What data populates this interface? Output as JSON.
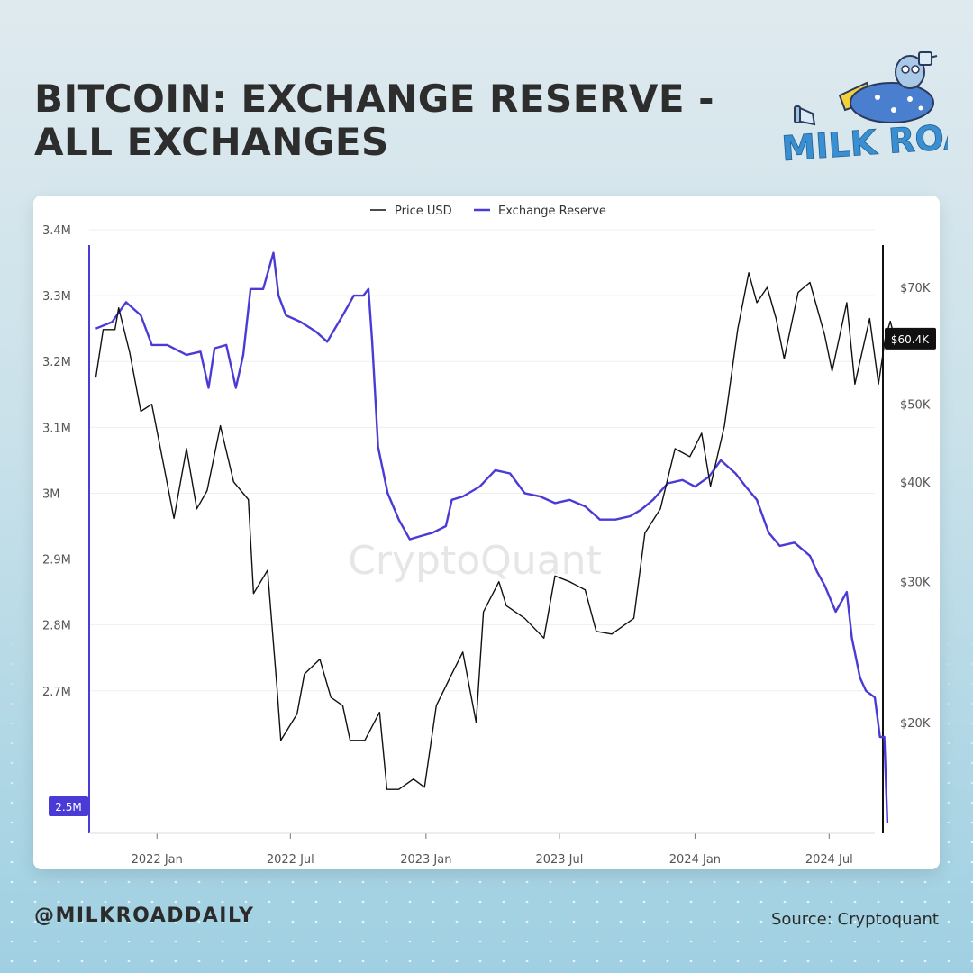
{
  "header": {
    "title": "BITCOIN: EXCHANGE RESERVE - ALL EXCHANGES"
  },
  "branding": {
    "logo_text": "MILK ROAD",
    "logo_icon": "cartoon-cow-with-telescope",
    "handle": "@MILKROADDAILY",
    "source": "Source: Cryptoquant",
    "watermark": "CryptoQuant"
  },
  "colors": {
    "reserve": "#4b3bd6",
    "price": "#111111",
    "title": "#2d2d2d",
    "logo": "#3a8fd1"
  },
  "chart_data": {
    "type": "line",
    "title": "",
    "legend": {
      "placement": "top-center",
      "entries": [
        "Price USD",
        "Exchange Reserve"
      ]
    },
    "x_range": [
      "2021-10",
      "2024-09"
    ],
    "x_ticks": [
      {
        "label": "2022 Jan",
        "t": "2022-01"
      },
      {
        "label": "2022 Jul",
        "t": "2022-07"
      },
      {
        "label": "2023 Jan",
        "t": "2023-01"
      },
      {
        "label": "2023 Jul",
        "t": "2023-07"
      },
      {
        "label": "2024 Jan",
        "t": "2024-01"
      },
      {
        "label": "2024 Jul",
        "t": "2024-07"
      }
    ],
    "y_left": {
      "range": [
        2500000,
        3400000
      ],
      "ticks": [
        {
          "v": 3400000,
          "label": "3.4M"
        },
        {
          "v": 3300000,
          "label": "3.3M"
        },
        {
          "v": 3200000,
          "label": "3.2M"
        },
        {
          "v": 3100000,
          "label": "3.1M"
        },
        {
          "v": 3000000,
          "label": "3M"
        },
        {
          "v": 2900000,
          "label": "2.9M"
        },
        {
          "v": 2800000,
          "label": "2.8M"
        },
        {
          "v": 2700000,
          "label": "2.7M"
        }
      ],
      "current_label": "2.5M"
    },
    "y_right": {
      "scale": "log",
      "ticks": [
        {
          "v": 70000,
          "label": "$70K"
        },
        {
          "v": 50000,
          "label": "$50K"
        },
        {
          "v": 40000,
          "label": "$40K"
        },
        {
          "v": 30000,
          "label": "$30K"
        },
        {
          "v": 20000,
          "label": "$20K"
        }
      ],
      "current_label": "$60.4K"
    },
    "series": [
      {
        "name": "Exchange Reserve",
        "axis": "left",
        "points": [
          [
            "2021-10-10",
            3250000
          ],
          [
            "2021-11-01",
            3260000
          ],
          [
            "2021-11-20",
            3290000
          ],
          [
            "2021-12-10",
            3270000
          ],
          [
            "2021-12-25",
            3225000
          ],
          [
            "2022-01-15",
            3225000
          ],
          [
            "2022-02-10",
            3210000
          ],
          [
            "2022-03-01",
            3215000
          ],
          [
            "2022-03-12",
            3160000
          ],
          [
            "2022-03-20",
            3220000
          ],
          [
            "2022-04-05",
            3225000
          ],
          [
            "2022-04-18",
            3160000
          ],
          [
            "2022-04-28",
            3210000
          ],
          [
            "2022-05-08",
            3310000
          ],
          [
            "2022-05-25",
            3310000
          ],
          [
            "2022-06-08",
            3365000
          ],
          [
            "2022-06-15",
            3300000
          ],
          [
            "2022-06-25",
            3270000
          ],
          [
            "2022-07-15",
            3260000
          ],
          [
            "2022-08-05",
            3245000
          ],
          [
            "2022-08-20",
            3230000
          ],
          [
            "2022-09-10",
            3270000
          ],
          [
            "2022-09-25",
            3300000
          ],
          [
            "2022-10-08",
            3300000
          ],
          [
            "2022-10-15",
            3310000
          ],
          [
            "2022-10-20",
            3230000
          ],
          [
            "2022-10-28",
            3070000
          ],
          [
            "2022-11-10",
            3000000
          ],
          [
            "2022-11-25",
            2960000
          ],
          [
            "2022-12-10",
            2930000
          ],
          [
            "2022-12-25",
            2935000
          ],
          [
            "2023-01-10",
            2940000
          ],
          [
            "2023-01-28",
            2950000
          ],
          [
            "2023-02-05",
            2990000
          ],
          [
            "2023-02-20",
            2995000
          ],
          [
            "2023-03-15",
            3010000
          ],
          [
            "2023-04-05",
            3035000
          ],
          [
            "2023-04-25",
            3030000
          ],
          [
            "2023-05-15",
            3000000
          ],
          [
            "2023-06-05",
            2995000
          ],
          [
            "2023-06-25",
            2985000
          ],
          [
            "2023-07-15",
            2990000
          ],
          [
            "2023-08-05",
            2980000
          ],
          [
            "2023-08-25",
            2960000
          ],
          [
            "2023-09-15",
            2960000
          ],
          [
            "2023-10-05",
            2965000
          ],
          [
            "2023-10-20",
            2975000
          ],
          [
            "2023-11-05",
            2990000
          ],
          [
            "2023-11-25",
            3015000
          ],
          [
            "2023-12-15",
            3020000
          ],
          [
            "2024-01-01",
            3010000
          ],
          [
            "2024-01-20",
            3025000
          ],
          [
            "2024-02-05",
            3050000
          ],
          [
            "2024-02-25",
            3030000
          ],
          [
            "2024-03-10",
            3010000
          ],
          [
            "2024-03-25",
            2990000
          ],
          [
            "2024-04-10",
            2940000
          ],
          [
            "2024-04-25",
            2920000
          ],
          [
            "2024-05-15",
            2925000
          ],
          [
            "2024-06-05",
            2905000
          ],
          [
            "2024-06-15",
            2880000
          ],
          [
            "2024-06-25",
            2860000
          ],
          [
            "2024-07-10",
            2820000
          ],
          [
            "2024-07-25",
            2850000
          ],
          [
            "2024-08-01",
            2780000
          ],
          [
            "2024-08-12",
            2720000
          ],
          [
            "2024-08-20",
            2700000
          ],
          [
            "2024-09-01",
            2690000
          ],
          [
            "2024-09-08",
            2630000
          ],
          [
            "2024-09-14",
            2630000
          ],
          [
            "2024-09-18",
            2500000
          ]
        ]
      },
      {
        "name": "Price USD",
        "axis": "right",
        "points": [
          [
            "2021-10-10",
            54000
          ],
          [
            "2021-10-20",
            62000
          ],
          [
            "2021-11-05",
            62000
          ],
          [
            "2021-11-10",
            66000
          ],
          [
            "2021-11-25",
            58000
          ],
          [
            "2021-12-10",
            49000
          ],
          [
            "2021-12-25",
            50000
          ],
          [
            "2022-01-10",
            42000
          ],
          [
            "2022-01-24",
            36000
          ],
          [
            "2022-02-10",
            44000
          ],
          [
            "2022-02-24",
            37000
          ],
          [
            "2022-03-10",
            39000
          ],
          [
            "2022-03-28",
            47000
          ],
          [
            "2022-04-15",
            40000
          ],
          [
            "2022-05-05",
            38000
          ],
          [
            "2022-05-12",
            29000
          ],
          [
            "2022-05-31",
            31000
          ],
          [
            "2022-06-13",
            22000
          ],
          [
            "2022-06-18",
            19000
          ],
          [
            "2022-07-10",
            20500
          ],
          [
            "2022-07-20",
            23000
          ],
          [
            "2022-08-10",
            24000
          ],
          [
            "2022-08-25",
            21500
          ],
          [
            "2022-09-10",
            21000
          ],
          [
            "2022-09-20",
            19000
          ],
          [
            "2022-10-10",
            19000
          ],
          [
            "2022-10-30",
            20600
          ],
          [
            "2022-11-09",
            16500
          ],
          [
            "2022-11-25",
            16500
          ],
          [
            "2022-12-15",
            17000
          ],
          [
            "2022-12-30",
            16600
          ],
          [
            "2023-01-15",
            21000
          ],
          [
            "2023-02-05",
            23000
          ],
          [
            "2023-02-20",
            24500
          ],
          [
            "2023-03-10",
            20000
          ],
          [
            "2023-03-20",
            27500
          ],
          [
            "2023-04-10",
            30000
          ],
          [
            "2023-04-20",
            28000
          ],
          [
            "2023-05-15",
            27000
          ],
          [
            "2023-06-10",
            25500
          ],
          [
            "2023-06-25",
            30500
          ],
          [
            "2023-07-15",
            30000
          ],
          [
            "2023-08-05",
            29300
          ],
          [
            "2023-08-20",
            26000
          ],
          [
            "2023-09-10",
            25800
          ],
          [
            "2023-10-10",
            27000
          ],
          [
            "2023-10-25",
            34500
          ],
          [
            "2023-11-15",
            37000
          ],
          [
            "2023-12-05",
            44000
          ],
          [
            "2023-12-25",
            43000
          ],
          [
            "2024-01-10",
            46000
          ],
          [
            "2024-01-22",
            39500
          ],
          [
            "2024-02-10",
            47000
          ],
          [
            "2024-02-28",
            62000
          ],
          [
            "2024-03-14",
            73000
          ],
          [
            "2024-03-25",
            67000
          ],
          [
            "2024-04-08",
            70000
          ],
          [
            "2024-04-20",
            64000
          ],
          [
            "2024-05-01",
            57000
          ],
          [
            "2024-05-20",
            69000
          ],
          [
            "2024-06-05",
            71000
          ],
          [
            "2024-06-25",
            61000
          ],
          [
            "2024-07-05",
            55000
          ],
          [
            "2024-07-25",
            67000
          ],
          [
            "2024-08-05",
            53000
          ],
          [
            "2024-08-25",
            64000
          ],
          [
            "2024-09-06",
            53000
          ],
          [
            "2024-09-15",
            60400
          ],
          [
            "2024-09-22",
            63500
          ],
          [
            "2024-09-28",
            60400
          ]
        ]
      }
    ]
  }
}
